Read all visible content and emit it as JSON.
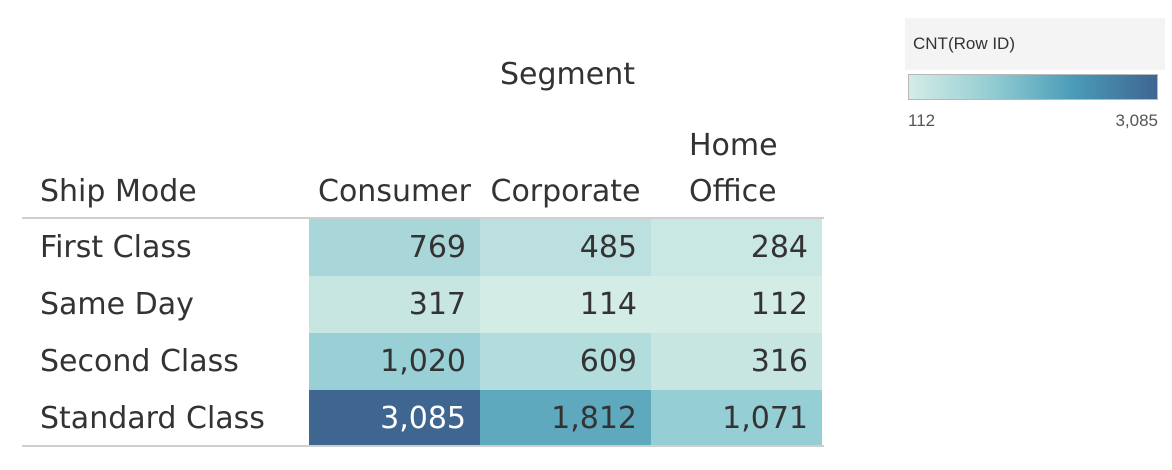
{
  "chart_data": {
    "type": "heatmap",
    "column_dimension": "Segment",
    "row_dimension": "Ship Mode",
    "measure": "CNT(Row ID)",
    "columns": [
      "Consumer",
      "Corporate",
      "Home Office"
    ],
    "column_header_lines": [
      [
        "Consumer"
      ],
      [
        "Corporate"
      ],
      [
        "Home",
        "Office"
      ]
    ],
    "rows": [
      "First Class",
      "Same Day",
      "Second Class",
      "Standard Class"
    ],
    "values": [
      [
        769,
        485,
        284
      ],
      [
        317,
        114,
        112
      ],
      [
        1020,
        609,
        316
      ],
      [
        3085,
        1812,
        1071
      ]
    ],
    "value_labels": [
      [
        "769",
        "485",
        "284"
      ],
      [
        "317",
        "114",
        "112"
      ],
      [
        "1,020",
        "609",
        "316"
      ],
      [
        "3,085",
        "1,812",
        "1,071"
      ]
    ],
    "color_range": [
      112,
      3085
    ],
    "color_scale": [
      "#d4ece6",
      "#93cdd3",
      "#4a9bb7",
      "#3f6591"
    ],
    "legend": {
      "title": "CNT(Row ID)",
      "min_label": "112",
      "max_label": "3,085",
      "placement": "top-right"
    }
  }
}
